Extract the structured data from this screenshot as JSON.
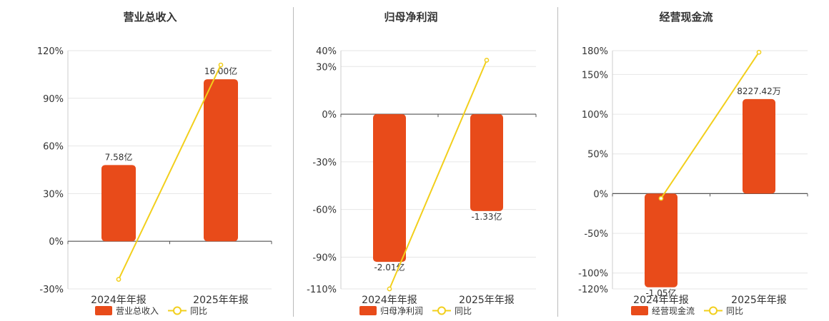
{
  "colors": {
    "bar": "#E84B1A",
    "line": "#F2CF1C",
    "grid": "#e6e6e6",
    "axis": "#555555",
    "text": "#333333"
  },
  "chart_data": [
    {
      "type": "bar",
      "title": "营业总收入",
      "categories": [
        "2024年年报",
        "2025年年报"
      ],
      "series": [
        {
          "name": "营业总收入",
          "kind": "bar",
          "axis": "percent",
          "values": [
            48,
            102
          ],
          "labels": [
            "7.58亿",
            "16.00亿"
          ]
        },
        {
          "name": "同比",
          "kind": "line",
          "axis": "percent",
          "values": [
            -24,
            111
          ]
        }
      ],
      "y_ticks": [
        {
          "value": 120,
          "label": "120%"
        },
        {
          "value": 90,
          "label": "90%"
        },
        {
          "value": 60,
          "label": "60%"
        },
        {
          "value": 30,
          "label": "30%"
        },
        {
          "value": 0,
          "label": "0%"
        },
        {
          "value": -30,
          "label": "-30%"
        }
      ],
      "ylim": [
        -30,
        120
      ],
      "grid": true,
      "legend": "bottom"
    },
    {
      "type": "bar",
      "title": "归母净利润",
      "categories": [
        "2024年年报",
        "2025年年报"
      ],
      "series": [
        {
          "name": "归母净利润",
          "kind": "bar",
          "axis": "percent",
          "values": [
            -93,
            -61
          ],
          "labels": [
            "-2.01亿",
            "-1.33亿"
          ]
        },
        {
          "name": "同比",
          "kind": "line",
          "axis": "percent",
          "values": [
            -110,
            34
          ]
        }
      ],
      "y_ticks": [
        {
          "value": 40,
          "label": "40%"
        },
        {
          "value": 30,
          "label": "30%"
        },
        {
          "value": 0,
          "label": "0%"
        },
        {
          "value": -30,
          "label": "-30%"
        },
        {
          "value": -60,
          "label": "-60%"
        },
        {
          "value": -90,
          "label": "-90%"
        },
        {
          "value": -110,
          "label": "-110%"
        }
      ],
      "ylim": [
        -110,
        40
      ],
      "grid": true,
      "legend": "bottom"
    },
    {
      "type": "bar",
      "title": "经营现金流",
      "categories": [
        "2024年年报",
        "2025年年报"
      ],
      "series": [
        {
          "name": "经营现金流",
          "kind": "bar",
          "axis": "percent",
          "values": [
            -118,
            119
          ],
          "labels": [
            "-1.05亿",
            "8227.42万"
          ]
        },
        {
          "name": "同比",
          "kind": "line",
          "axis": "percent",
          "values": [
            -6,
            178
          ]
        }
      ],
      "y_ticks": [
        {
          "value": 180,
          "label": "180%"
        },
        {
          "value": 150,
          "label": "150%"
        },
        {
          "value": 100,
          "label": "100%"
        },
        {
          "value": 50,
          "label": "50%"
        },
        {
          "value": 0,
          "label": "0%"
        },
        {
          "value": -50,
          "label": "-50%"
        },
        {
          "value": -100,
          "label": "-100%"
        },
        {
          "value": -120,
          "label": "-120%"
        }
      ],
      "ylim": [
        -120,
        180
      ],
      "grid": true,
      "legend": "bottom"
    }
  ]
}
